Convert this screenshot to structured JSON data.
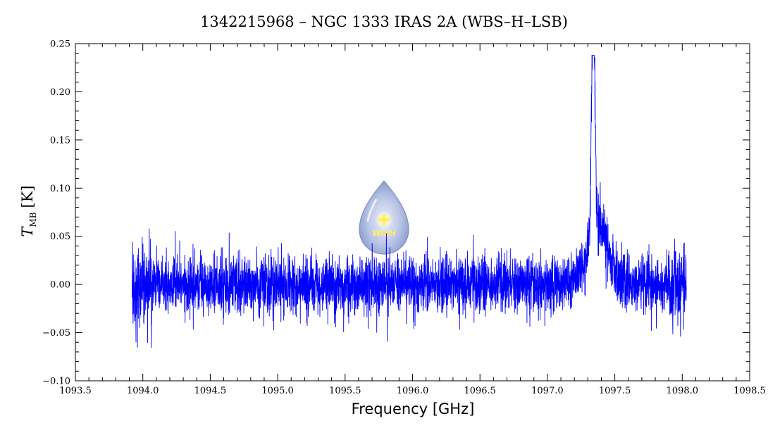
{
  "chart_data": {
    "type": "line",
    "title": "1342215968 – NGC 1333 IRAS 2A (WBS–H–LSB)",
    "xlabel": "Frequency [GHz]",
    "ylabel_main": "T",
    "ylabel_sub": "MB",
    "ylabel_unit": "[K]",
    "xlim": [
      1093.5,
      1098.5
    ],
    "ylim": [
      -0.1,
      0.25
    ],
    "x_ticks": [
      1093.5,
      1094.0,
      1094.5,
      1095.0,
      1095.5,
      1096.0,
      1096.5,
      1097.0,
      1097.5,
      1098.0,
      1098.5
    ],
    "x_tick_labels": [
      "1093.5",
      "1094.0",
      "1094.5",
      "1095.0",
      "1095.5",
      "1096.0",
      "1096.5",
      "1097.0",
      "1097.5",
      "1098.0",
      "1098.5"
    ],
    "y_ticks": [
      -0.1,
      -0.05,
      0.0,
      0.05,
      0.1,
      0.15,
      0.2,
      0.25
    ],
    "y_tick_labels": [
      "−0.10",
      "−0.05",
      "0.00",
      "0.05",
      "0.10",
      "0.15",
      "0.20",
      "0.25"
    ],
    "grid": false,
    "series": [
      {
        "color": "#0000ff",
        "x_range": [
          1093.92,
          1098.03
        ],
        "baseline": 0.0,
        "noise_rms": 0.015,
        "features": [
          {
            "center": 1097.34,
            "peak": 0.235,
            "fwhm": 0.03
          },
          {
            "center": 1097.38,
            "peak": 0.06,
            "fwhm": 0.18
          }
        ]
      }
    ],
    "logo": {
      "text": "WISH",
      "colors": [
        "#7f93c9",
        "#d6dcf0",
        "#ffef5a"
      ]
    }
  }
}
